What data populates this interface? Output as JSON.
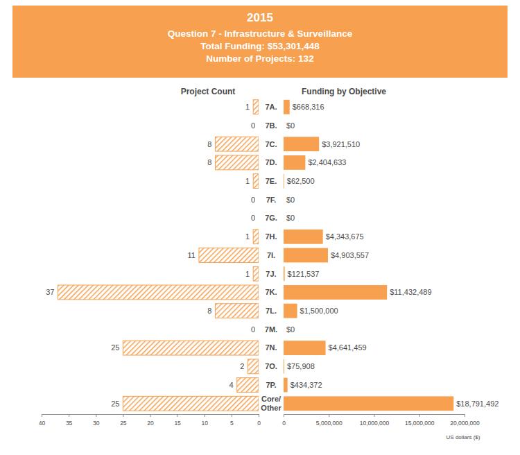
{
  "header": {
    "title": "2015",
    "lines": [
      "Question 7 - Infrastructure & Surveillance",
      "Total Funding: $53,301,448",
      "Number of Projects: 132"
    ]
  },
  "chart_data": [
    {
      "type": "bar",
      "orientation": "horizontal",
      "title": "Project Count",
      "categories": [
        "7A.",
        "7B.",
        "7C.",
        "7D.",
        "7E.",
        "7F.",
        "7G.",
        "7H.",
        "7I.",
        "7J.",
        "7K.",
        "7L.",
        "7M.",
        "7N.",
        "7O.",
        "7P.",
        "Core/\nOther"
      ],
      "values": [
        1,
        0,
        8,
        8,
        1,
        0,
        0,
        1,
        11,
        1,
        37,
        8,
        0,
        25,
        2,
        4,
        25
      ],
      "color": "#f7a04f",
      "xlim": [
        40,
        0
      ],
      "xticks": [
        40,
        35,
        30,
        25,
        20,
        15,
        10,
        5,
        0
      ],
      "data_labels": true
    },
    {
      "type": "bar",
      "orientation": "horizontal",
      "title": "Funding by Objective",
      "x_label": "US dollars ($)",
      "categories": [
        "7A.",
        "7B.",
        "7C.",
        "7D.",
        "7E.",
        "7F.",
        "7G.",
        "7H.",
        "7I.",
        "7J.",
        "7K.",
        "7L.",
        "7M.",
        "7N.",
        "7O.",
        "7P.",
        "Core/\nOther"
      ],
      "values": [
        668316,
        0,
        3921510,
        2404633,
        62500,
        0,
        0,
        4343675,
        4903557,
        121537,
        11432489,
        1500000,
        0,
        4641459,
        75908,
        434372,
        18791492
      ],
      "value_labels": [
        "$668,316",
        "$0",
        "$3,921,510",
        "$2,404,633",
        "$62,500",
        "$0",
        "$0",
        "$4,343,675",
        "$4,903,557",
        "$121,537",
        "$11,432,489",
        "$1,500,000",
        "$0",
        "$4,641,459",
        "$75,908",
        "$434,372",
        "$18,791,492"
      ],
      "color": "#f7a04f",
      "xlim": [
        0,
        20000000
      ],
      "xticks": [
        0,
        {
          "value": 5000000,
          "label": "5,000,000"
        },
        {
          "value": 10000000,
          "label": "10,000,000"
        },
        {
          "value": 15000000,
          "label": "15,000,000"
        },
        {
          "value": 20000000,
          "label": "20,000,000"
        }
      ],
      "data_labels": true
    }
  ]
}
